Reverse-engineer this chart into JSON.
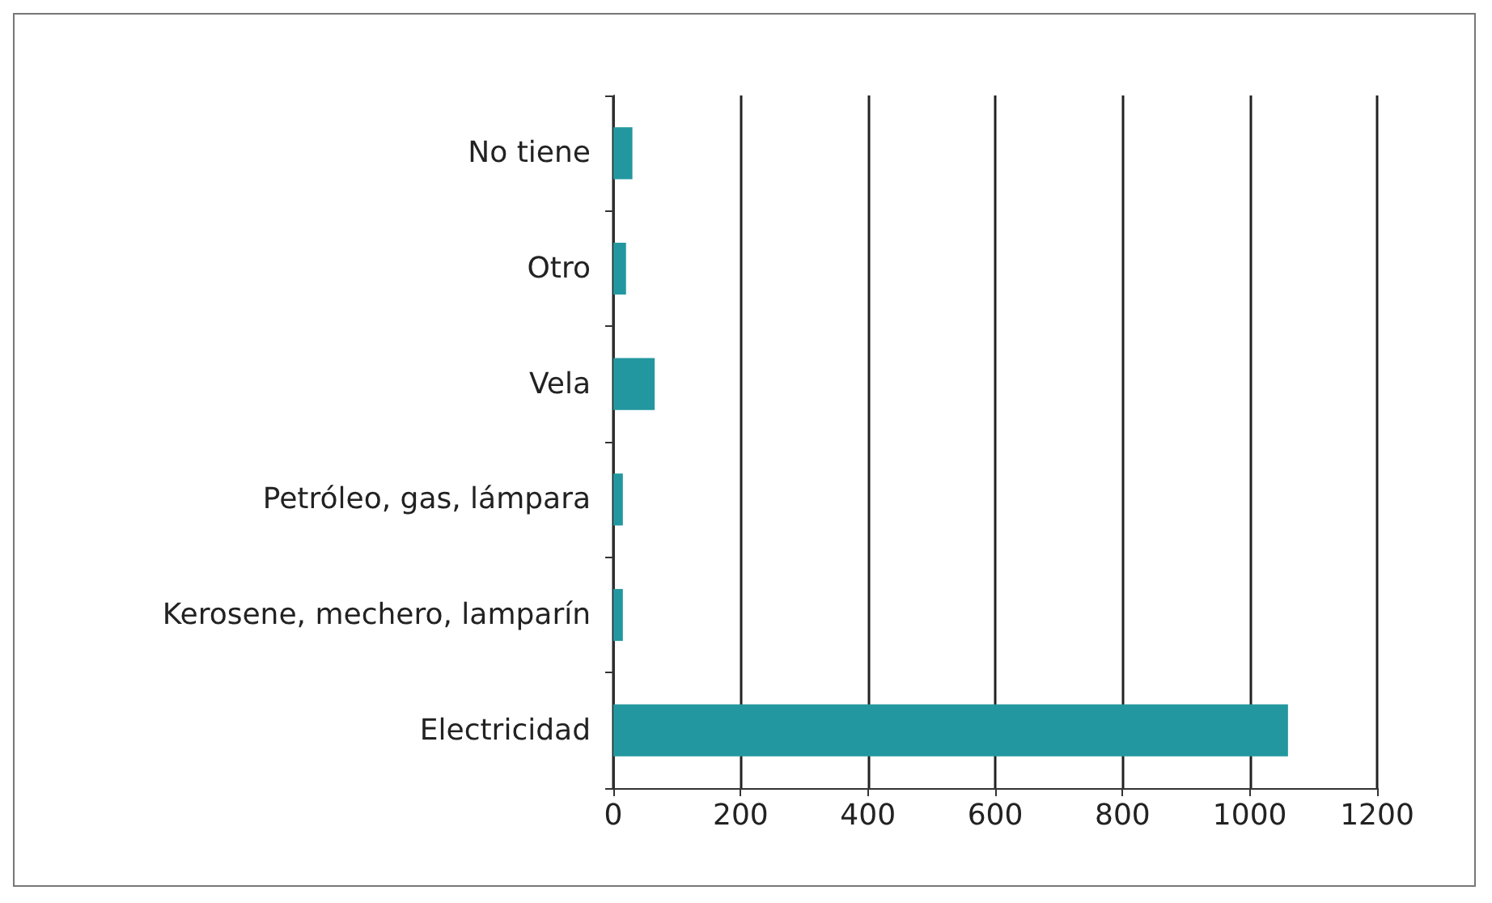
{
  "chart_data": {
    "type": "bar",
    "orientation": "horizontal",
    "categories": [
      "No tiene",
      "Otro",
      "Vela",
      "Petróleo, gas, lámpara",
      "Kerosene, mechero, lamparín",
      "Electricidad"
    ],
    "values": [
      30,
      20,
      65,
      15,
      15,
      1060
    ],
    "color": "#23979f",
    "xlim": [
      0,
      1200
    ],
    "xticks": [
      0,
      200,
      400,
      600,
      800,
      1000,
      1200
    ],
    "grid": "x"
  }
}
